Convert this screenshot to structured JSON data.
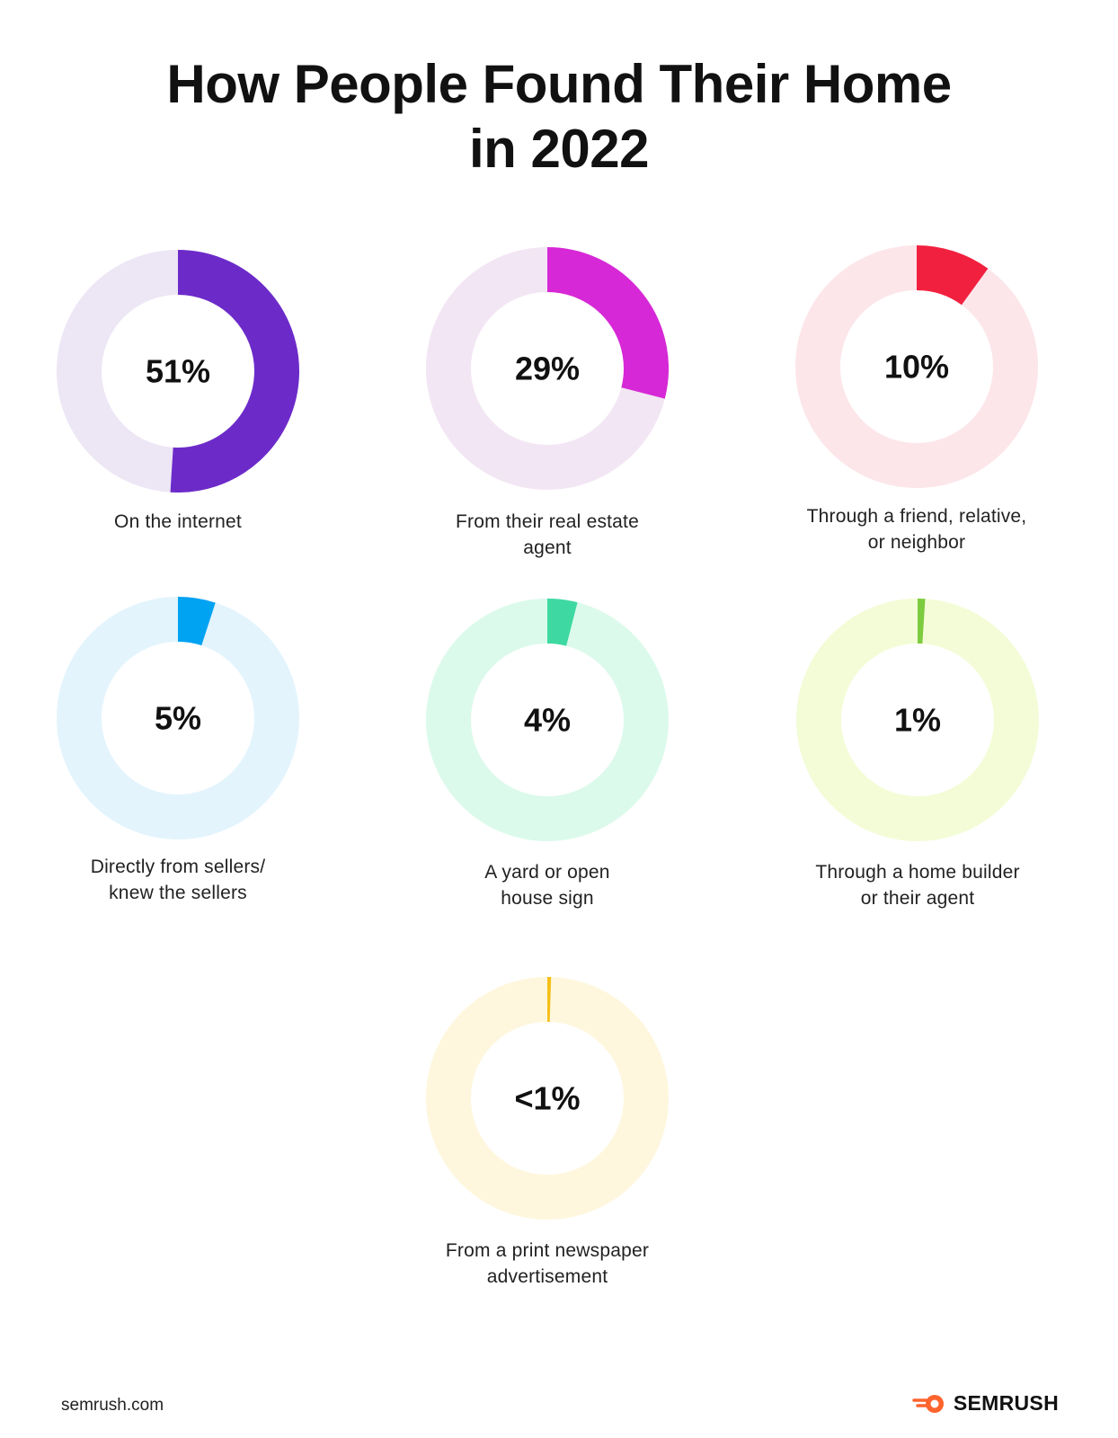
{
  "title_line1": "How People Found Their Home",
  "title_line2": "in 2022",
  "chart_data": {
    "type": "pie",
    "title": "How People Found Their Home in 2022",
    "items": [
      {
        "label_text": "51%",
        "value": 51,
        "caption": [
          "On the internet"
        ],
        "color": "#6C2BC9",
        "track_color": "#ECE6F5"
      },
      {
        "label_text": "29%",
        "value": 29,
        "caption": [
          "From their real estate",
          "agent"
        ],
        "color": "#D628D6",
        "track_color": "#F3E6F4"
      },
      {
        "label_text": "10%",
        "value": 10,
        "caption": [
          "Through a friend, relative,",
          "or neighbor"
        ],
        "color": "#F2203F",
        "track_color": "#FCE6EA"
      },
      {
        "label_text": "5%",
        "value": 5,
        "caption": [
          "Directly from sellers/",
          "knew the sellers"
        ],
        "color": "#00A2F2",
        "track_color": "#E3F4FD"
      },
      {
        "label_text": "4%",
        "value": 4,
        "caption": [
          "A yard or open",
          "house sign"
        ],
        "color": "#3ED9A2",
        "track_color": "#DCFAEC"
      },
      {
        "label_text": "1%",
        "value": 1,
        "caption": [
          "Through a home builder",
          "or their agent"
        ],
        "color": "#7DCB3F",
        "track_color": "#F3FCD7"
      },
      {
        "label_text": "<1%",
        "value": 0.5,
        "caption": [
          "From a print newspaper",
          "advertisement"
        ],
        "color": "#F5BF1A",
        "track_color": "#FEF7DE"
      }
    ]
  },
  "footer": {
    "url": "semrush.com",
    "brand": "SEMRUSH",
    "brand_color": "#FF642D"
  }
}
